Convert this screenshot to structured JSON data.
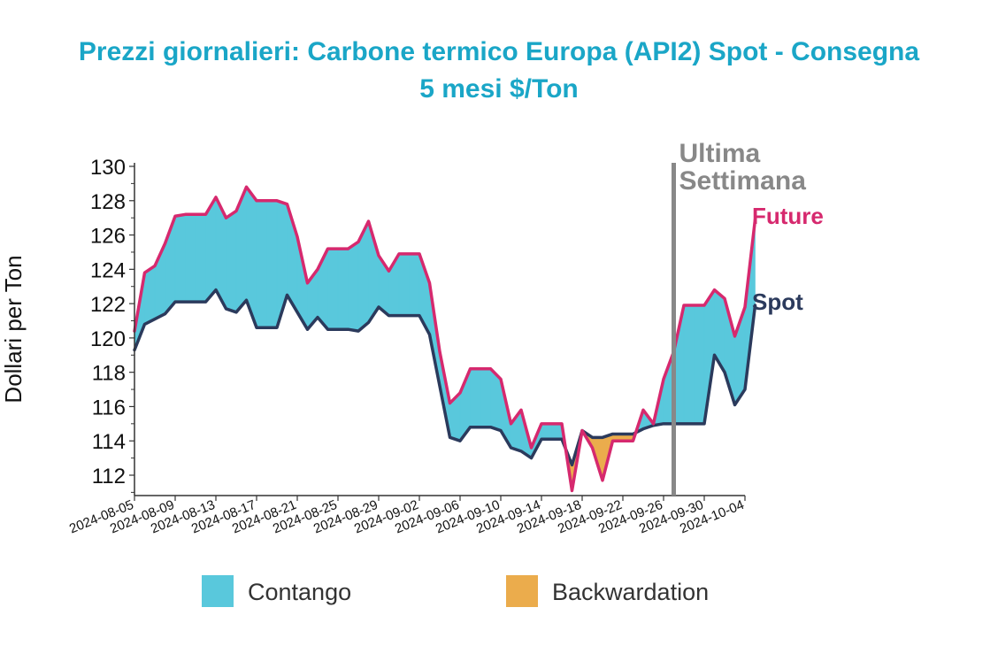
{
  "chart_data": {
    "type": "area",
    "title_line1": "Prezzi giornalieri: Carbone termico Europa (API2) Spot - Consegna",
    "title_line2": "5 mesi $/Ton",
    "ylabel": "Dollari per Ton",
    "ylim": [
      111,
      130.5
    ],
    "yticks": [
      112,
      114,
      116,
      118,
      120,
      122,
      124,
      126,
      128,
      130
    ],
    "xticks": [
      "2024-08-05",
      "2024-08-09",
      "2024-08-13",
      "2024-08-17",
      "2024-08-21",
      "2024-08-25",
      "2024-08-29",
      "2024-09-02",
      "2024-09-06",
      "2024-09-10",
      "2024-09-14",
      "2024-09-18",
      "2024-09-22",
      "2024-09-26",
      "2024-09-30",
      "2024-10-04"
    ],
    "x_start": "2024-08-05",
    "x_end": "2024-10-04",
    "annotation": {
      "line1": "Ultima",
      "line2": "Settimana",
      "date": "2024-09-27"
    },
    "legend": {
      "contango": "Contango",
      "backwardation": "Backwardation"
    },
    "colors": {
      "title": "#1aa6c7",
      "future": "#d6296e",
      "spot": "#2b3a5c",
      "contango": "#59c8dc",
      "backwardation": "#ebac4c",
      "annotation": "#888888"
    },
    "series": [
      {
        "name": "Future",
        "points": [
          [
            "2024-08-05",
            120.4
          ],
          [
            "2024-08-06",
            123.8
          ],
          [
            "2024-08-07",
            124.2
          ],
          [
            "2024-08-08",
            125.5
          ],
          [
            "2024-08-09",
            127.1
          ],
          [
            "2024-08-10",
            127.2
          ],
          [
            "2024-08-11",
            127.2
          ],
          [
            "2024-08-12",
            127.2
          ],
          [
            "2024-08-13",
            128.2
          ],
          [
            "2024-08-14",
            127.0
          ],
          [
            "2024-08-15",
            127.4
          ],
          [
            "2024-08-16",
            128.8
          ],
          [
            "2024-08-17",
            128.0
          ],
          [
            "2024-08-18",
            128.0
          ],
          [
            "2024-08-19",
            128.0
          ],
          [
            "2024-08-20",
            127.8
          ],
          [
            "2024-08-21",
            125.9
          ],
          [
            "2024-08-22",
            123.2
          ],
          [
            "2024-08-23",
            124.0
          ],
          [
            "2024-08-24",
            125.2
          ],
          [
            "2024-08-25",
            125.2
          ],
          [
            "2024-08-26",
            125.2
          ],
          [
            "2024-08-27",
            125.6
          ],
          [
            "2024-08-28",
            126.8
          ],
          [
            "2024-08-29",
            124.8
          ],
          [
            "2024-08-30",
            123.9
          ],
          [
            "2024-08-31",
            124.9
          ],
          [
            "2024-09-01",
            124.9
          ],
          [
            "2024-09-02",
            124.9
          ],
          [
            "2024-09-03",
            123.2
          ],
          [
            "2024-09-04",
            119.2
          ],
          [
            "2024-09-05",
            116.2
          ],
          [
            "2024-09-06",
            116.8
          ],
          [
            "2024-09-07",
            118.2
          ],
          [
            "2024-09-08",
            118.2
          ],
          [
            "2024-09-09",
            118.2
          ],
          [
            "2024-09-10",
            117.6
          ],
          [
            "2024-09-11",
            115.0
          ],
          [
            "2024-09-12",
            115.8
          ],
          [
            "2024-09-13",
            113.6
          ],
          [
            "2024-09-14",
            115.0
          ],
          [
            "2024-09-15",
            115.0
          ],
          [
            "2024-09-16",
            115.0
          ],
          [
            "2024-09-17",
            111.1
          ],
          [
            "2024-09-18",
            114.6
          ],
          [
            "2024-09-19",
            113.6
          ],
          [
            "2024-09-20",
            111.7
          ],
          [
            "2024-09-21",
            114.0
          ],
          [
            "2024-09-22",
            114.0
          ],
          [
            "2024-09-23",
            114.0
          ],
          [
            "2024-09-24",
            115.8
          ],
          [
            "2024-09-25",
            115.0
          ],
          [
            "2024-09-26",
            117.6
          ],
          [
            "2024-09-27",
            119.2
          ],
          [
            "2024-09-28",
            121.9
          ],
          [
            "2024-09-29",
            121.9
          ],
          [
            "2024-09-30",
            121.9
          ],
          [
            "2024-10-01",
            122.8
          ],
          [
            "2024-10-02",
            122.3
          ],
          [
            "2024-10-03",
            120.1
          ],
          [
            "2024-10-04",
            121.8
          ],
          [
            "2024-10-05",
            126.9
          ]
        ]
      },
      {
        "name": "Spot",
        "points": [
          [
            "2024-08-05",
            119.3
          ],
          [
            "2024-08-06",
            120.8
          ],
          [
            "2024-08-07",
            121.1
          ],
          [
            "2024-08-08",
            121.4
          ],
          [
            "2024-08-09",
            122.1
          ],
          [
            "2024-08-10",
            122.1
          ],
          [
            "2024-08-11",
            122.1
          ],
          [
            "2024-08-12",
            122.1
          ],
          [
            "2024-08-13",
            122.8
          ],
          [
            "2024-08-14",
            121.7
          ],
          [
            "2024-08-15",
            121.5
          ],
          [
            "2024-08-16",
            122.2
          ],
          [
            "2024-08-17",
            120.6
          ],
          [
            "2024-08-18",
            120.6
          ],
          [
            "2024-08-19",
            120.6
          ],
          [
            "2024-08-20",
            122.5
          ],
          [
            "2024-08-21",
            121.5
          ],
          [
            "2024-08-22",
            120.5
          ],
          [
            "2024-08-23",
            121.2
          ],
          [
            "2024-08-24",
            120.5
          ],
          [
            "2024-08-25",
            120.5
          ],
          [
            "2024-08-26",
            120.5
          ],
          [
            "2024-08-27",
            120.4
          ],
          [
            "2024-08-28",
            120.9
          ],
          [
            "2024-08-29",
            121.8
          ],
          [
            "2024-08-30",
            121.3
          ],
          [
            "2024-08-31",
            121.3
          ],
          [
            "2024-09-01",
            121.3
          ],
          [
            "2024-09-02",
            121.3
          ],
          [
            "2024-09-03",
            120.2
          ],
          [
            "2024-09-04",
            117.2
          ],
          [
            "2024-09-05",
            114.2
          ],
          [
            "2024-09-06",
            114.0
          ],
          [
            "2024-09-07",
            114.8
          ],
          [
            "2024-09-08",
            114.8
          ],
          [
            "2024-09-09",
            114.8
          ],
          [
            "2024-09-10",
            114.6
          ],
          [
            "2024-09-11",
            113.6
          ],
          [
            "2024-09-12",
            113.4
          ],
          [
            "2024-09-13",
            113.0
          ],
          [
            "2024-09-14",
            114.1
          ],
          [
            "2024-09-15",
            114.1
          ],
          [
            "2024-09-16",
            114.1
          ],
          [
            "2024-09-17",
            112.6
          ],
          [
            "2024-09-18",
            114.6
          ],
          [
            "2024-09-19",
            114.2
          ],
          [
            "2024-09-20",
            114.2
          ],
          [
            "2024-09-21",
            114.4
          ],
          [
            "2024-09-22",
            114.4
          ],
          [
            "2024-09-23",
            114.4
          ],
          [
            "2024-09-24",
            114.7
          ],
          [
            "2024-09-25",
            114.9
          ],
          [
            "2024-09-26",
            115.0
          ],
          [
            "2024-09-27",
            115.0
          ],
          [
            "2024-09-28",
            115.0
          ],
          [
            "2024-09-29",
            115.0
          ],
          [
            "2024-09-30",
            115.0
          ],
          [
            "2024-10-01",
            119.0
          ],
          [
            "2024-10-02",
            118.0
          ],
          [
            "2024-10-03",
            116.1
          ],
          [
            "2024-10-04",
            117.0
          ],
          [
            "2024-10-05",
            121.9
          ]
        ]
      }
    ]
  }
}
